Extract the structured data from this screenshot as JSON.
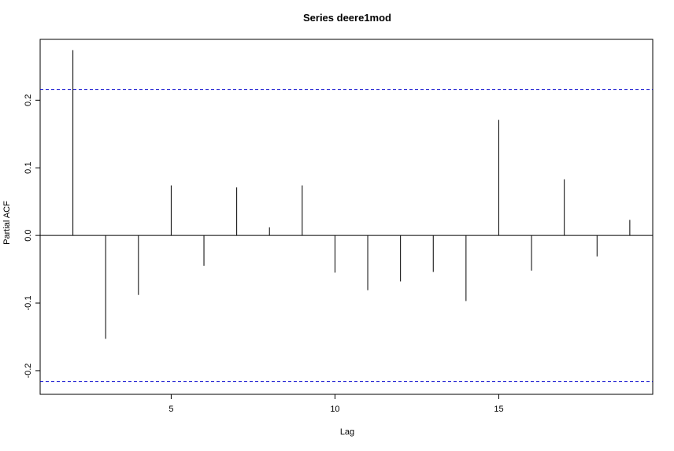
{
  "chart_data": {
    "type": "bar",
    "title": "Series  deere1mod",
    "xlabel": "Lag",
    "ylabel": "Partial ACF",
    "x": [
      2,
      3,
      4,
      5,
      6,
      7,
      8,
      9,
      10,
      11,
      12,
      13,
      14,
      15,
      16,
      17,
      18,
      19
    ],
    "values": [
      0.274,
      -0.153,
      -0.088,
      0.074,
      -0.045,
      0.071,
      0.012,
      0.074,
      -0.055,
      -0.081,
      -0.068,
      -0.054,
      -0.097,
      0.171,
      -0.052,
      0.083,
      -0.031,
      0.023
    ],
    "xlim": [
      1,
      19.7
    ],
    "ylim": [
      -0.235,
      0.29
    ],
    "x_ticks": [
      5,
      10,
      15
    ],
    "y_ticks": [
      -0.2,
      -0.1,
      0.0,
      0.1,
      0.2
    ],
    "confidence_bound": 0.216,
    "zero_line": true,
    "grid": false,
    "colors": {
      "bars": "#000000",
      "confidence": "#0000cc",
      "axis": "#000000"
    }
  }
}
